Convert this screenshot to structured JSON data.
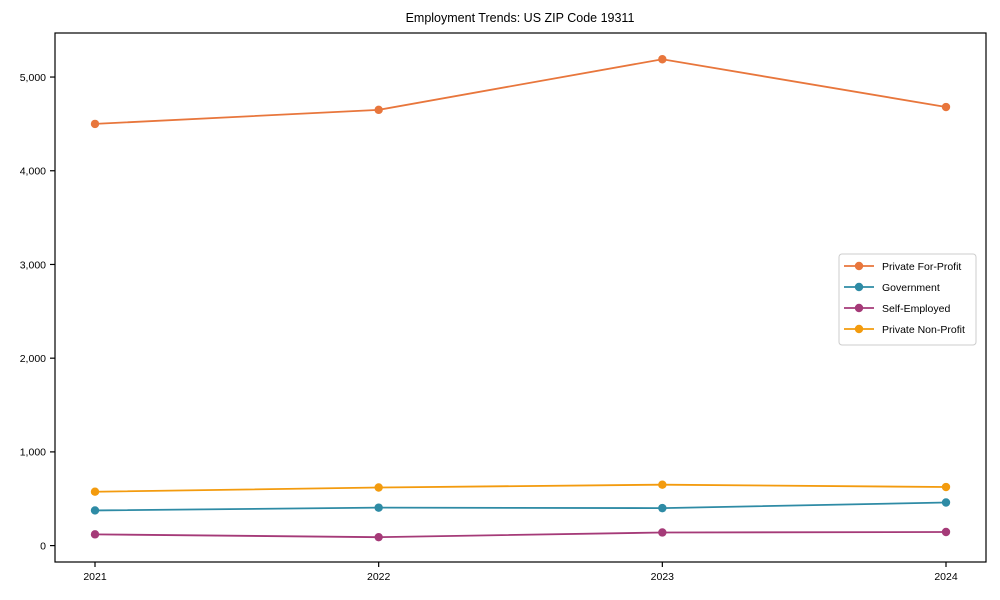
{
  "chart_data": {
    "type": "line",
    "title": "Employment Trends: US ZIP Code 19311",
    "xlabel": "",
    "ylabel": "",
    "x_categories": [
      "2021",
      "2022",
      "2023",
      "2024"
    ],
    "series": [
      {
        "name": "Private For-Profit",
        "color": "#E8763C",
        "values": [
          4500,
          4650,
          5190,
          4680
        ]
      },
      {
        "name": "Government",
        "color": "#2E8BA5",
        "values": [
          375,
          405,
          400,
          460
        ]
      },
      {
        "name": "Self-Employed",
        "color": "#A53A78",
        "values": [
          120,
          90,
          140,
          145
        ]
      },
      {
        "name": "Private Non-Profit",
        "color": "#F39B0E",
        "values": [
          575,
          620,
          650,
          625
        ]
      }
    ],
    "yticks": [
      {
        "value": 0,
        "label": "0"
      },
      {
        "value": 1000,
        "label": "1,000"
      },
      {
        "value": 2000,
        "label": "2,000"
      },
      {
        "value": 3000,
        "label": "3,000"
      },
      {
        "value": 4000,
        "label": "4,000"
      },
      {
        "value": 5000,
        "label": "5,000"
      }
    ],
    "ylim": [
      -175,
      5470
    ],
    "grid": false,
    "legend_position": "center-right",
    "axis_color": "#000000",
    "legend_border_color": "#cccccc",
    "legend_background": "#ffffff"
  }
}
